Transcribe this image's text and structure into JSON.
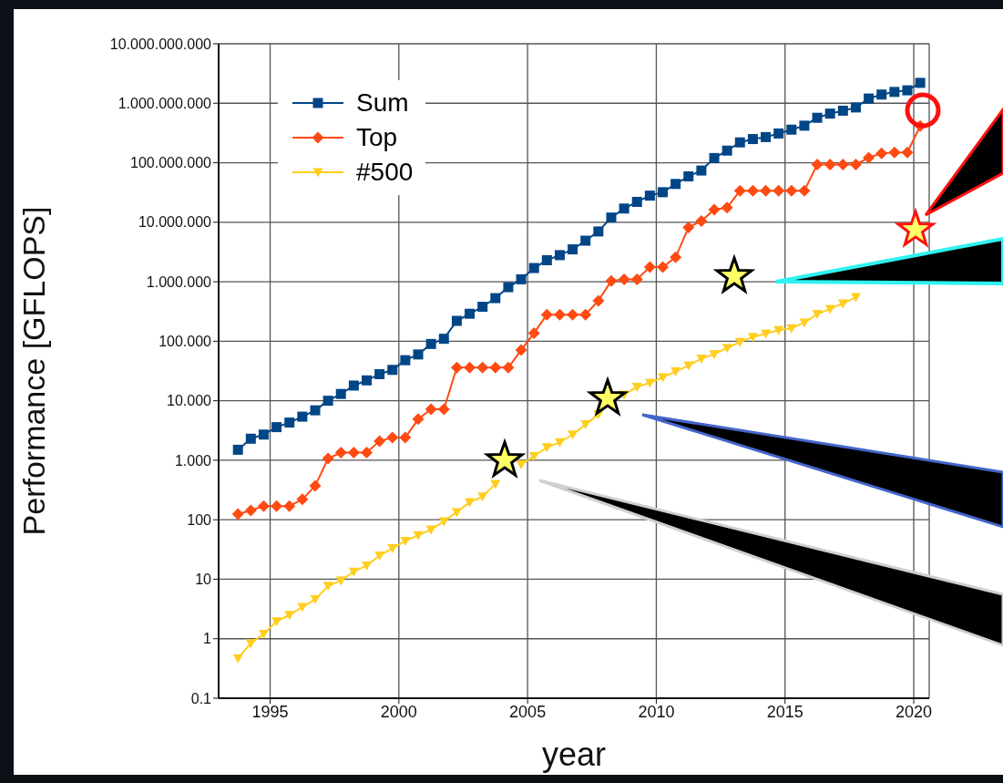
{
  "chart_data": {
    "type": "line",
    "xlabel": "year",
    "ylabel": "Performance [GFLOPS]",
    "log": "y",
    "grid": true,
    "legend": "top left",
    "line_style": "solid",
    "x": [
      1993.75,
      1994.25,
      1994.75,
      1995.25,
      1995.75,
      1996.25,
      1996.75,
      1997.25,
      1997.75,
      1998.25,
      1998.75,
      1999.25,
      1999.75,
      2000.25,
      2000.75,
      2001.25,
      2001.75,
      2002.25,
      2002.75,
      2003.25,
      2003.75,
      2004.25,
      2004.75,
      2005.25,
      2005.75,
      2006.25,
      2006.75,
      2007.25,
      2007.75,
      2008.25,
      2008.75,
      2009.25,
      2009.75,
      2010.25,
      2010.75,
      2011.25,
      2011.75,
      2012.25,
      2012.75,
      2013.25,
      2013.75,
      2014.25,
      2014.75,
      2015.25,
      2015.75,
      2016.25,
      2016.75,
      2017.25,
      2017.75,
      2018.25,
      2018.75,
      2019.25,
      2019.75,
      2020.25
    ],
    "xlim": [
      1993,
      2020.6
    ],
    "xticks": [
      1995,
      2000,
      2005,
      2010,
      2015,
      2020
    ],
    "ylim": [
      0.1,
      10000000000
    ],
    "yticks": [
      {
        "value": 0.1,
        "label": "0.1"
      },
      {
        "value": 1,
        "label": "1"
      },
      {
        "value": 10,
        "label": "10"
      },
      {
        "value": 100,
        "label": "100"
      },
      {
        "value": 1000,
        "label": "1.000"
      },
      {
        "value": 10000,
        "label": "10.000"
      },
      {
        "value": 100000,
        "label": "100.000"
      },
      {
        "value": 1000000,
        "label": "1.000.000"
      },
      {
        "value": 10000000,
        "label": "10.000.000"
      },
      {
        "value": 100000000,
        "label": "100.000.000"
      },
      {
        "value": 1000000000,
        "label": "1.000.000.000"
      },
      {
        "value": 10000000000,
        "label": "10.000.000.000"
      }
    ],
    "series": [
      {
        "name": "Sum",
        "color": "#004687",
        "marker": "square",
        "values": [
          1500,
          2300,
          2700,
          3600,
          4300,
          5400,
          6900,
          10000,
          13000,
          18000,
          22000,
          28000,
          33000,
          48000,
          60000,
          90000,
          110000,
          220000,
          290000,
          380000,
          530000,
          810000,
          1100000,
          1700000,
          2300000,
          2800000,
          3500000,
          4900000,
          7000000,
          12000000,
          17000000,
          22000000,
          28000000,
          32000000,
          44000000,
          59000000,
          74000000,
          120000000,
          160000000,
          220000000,
          250000000,
          270000000,
          310000000,
          360000000,
          420000000,
          570000000,
          670000000,
          750000000,
          850000000,
          1200000000,
          1400000000,
          1550000000,
          1650000000,
          2200000000
        ]
      },
      {
        "name": "Top",
        "color": "#ff4a12",
        "marker": "diamond",
        "values": [
          124,
          143,
          170,
          170,
          170,
          220,
          370,
          1070,
          1340,
          1340,
          1340,
          2100,
          2400,
          2400,
          4900,
          7200,
          7200,
          36000,
          36000,
          36000,
          36000,
          36000,
          71000,
          137000,
          280000,
          280000,
          280000,
          280000,
          480000,
          1030000,
          1100000,
          1100000,
          1760000,
          1760000,
          2570000,
          8200000,
          10500000,
          16300000,
          17600000,
          34000000,
          34000000,
          34000000,
          34000000,
          34000000,
          34000000,
          93000000,
          93000000,
          93000000,
          93000000,
          122000000,
          144000000,
          149000000,
          149000000,
          415000000
        ]
      },
      {
        "name": "#500",
        "color": "#ffce1e",
        "marker": "triangle",
        "values": [
          0.47,
          0.84,
          1.2,
          1.96,
          2.5,
          3.4,
          4.6,
          7.7,
          9.5,
          13.4,
          17,
          25,
          33,
          44,
          55,
          68,
          94,
          134,
          196,
          245,
          400,
          null,
          850,
          1170,
          1650,
          2000,
          2700,
          4000,
          5900,
          null,
          12600,
          17100,
          20000,
          24700,
          31000,
          39000,
          51000,
          61000,
          77000,
          97000,
          118000,
          134000,
          153000,
          165000,
          206000,
          286000,
          349000,
          432000,
          549000,
          null,
          null,
          null,
          null,
          null
        ]
      }
    ]
  }
}
